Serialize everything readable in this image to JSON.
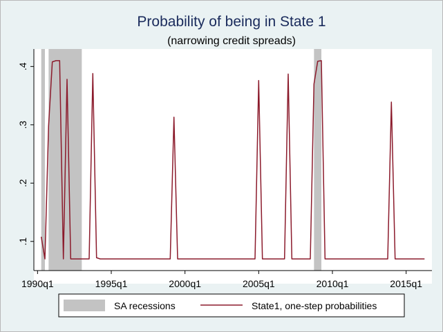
{
  "chart_data": {
    "type": "line",
    "title": "Probability of being in State 1",
    "subtitle": "(narrowing credit spreads)",
    "xlabel": "",
    "ylabel": "",
    "x_ticks": [
      "1990q1",
      "1995q1",
      "2000q1",
      "2005q1",
      "2010q1",
      "2015q1"
    ],
    "y_ticks": [
      ".1",
      ".2",
      ".3",
      ".4"
    ],
    "y_tick_values": [
      0.1,
      0.2,
      0.3,
      0.4
    ],
    "xlim": [
      "1989q4",
      "2016q4"
    ],
    "ylim": [
      0.05,
      0.43
    ],
    "grid": false,
    "legend_position": "bottom",
    "colors": {
      "line": "#8b1a2b",
      "recession": "#c3c3c3",
      "background": "#eaf2f3",
      "title": "#1a2b5c"
    },
    "recessions": {
      "name": "SA recessions",
      "periods": [
        [
          "1990q2",
          "1990q3"
        ],
        [
          "1990q4",
          "1993q1"
        ],
        [
          "2008q4",
          "2009q2"
        ]
      ]
    },
    "series": [
      {
        "name": "State1, one-step probabilities",
        "x": [
          "1990q2",
          "1990q3",
          "1990q4",
          "1991q1",
          "1991q2",
          "1991q3",
          "1991q4",
          "1992q1",
          "1992q2",
          "1992q3",
          "1992q4",
          "1993q1",
          "1993q2",
          "1993q3",
          "1993q4",
          "1994q1",
          "1994q2",
          "1995q1",
          "1996q1",
          "1997q1",
          "1998q1",
          "1998q3",
          "1999q1",
          "1999q2",
          "1999q3",
          "2000q1",
          "2002q1",
          "2004q1",
          "2004q4",
          "2005q1",
          "2005q2",
          "2006q1",
          "2006q4",
          "2007q1",
          "2007q2",
          "2008q1",
          "2008q3",
          "2008q4",
          "2009q1",
          "2009q2",
          "2009q3",
          "2010q1",
          "2012q1",
          "2013q3",
          "2013q4",
          "2014q1",
          "2014q2",
          "2015q1",
          "2016q2"
        ],
        "values": [
          0.108,
          0.07,
          0.298,
          0.408,
          0.41,
          0.41,
          0.07,
          0.378,
          0.07,
          0.07,
          0.07,
          0.07,
          0.07,
          0.07,
          0.388,
          0.072,
          0.07,
          0.07,
          0.07,
          0.07,
          0.07,
          0.07,
          0.07,
          0.313,
          0.07,
          0.07,
          0.07,
          0.07,
          0.07,
          0.376,
          0.07,
          0.07,
          0.07,
          0.387,
          0.07,
          0.07,
          0.07,
          0.37,
          0.409,
          0.41,
          0.07,
          0.07,
          0.07,
          0.07,
          0.07,
          0.339,
          0.07,
          0.07,
          0.07
        ]
      }
    ]
  }
}
